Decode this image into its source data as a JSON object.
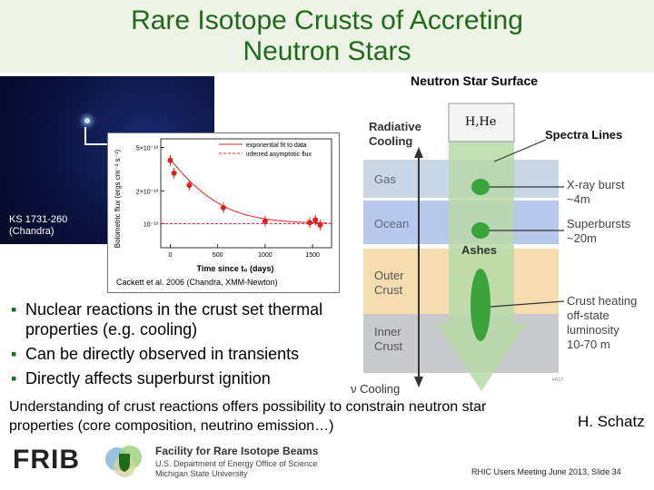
{
  "slide": {
    "title_line1": "Rare Isotope Crusts of Accreting",
    "title_line2": "Neutron Stars"
  },
  "image": {
    "source_label_line1": "KS 1731-260",
    "source_label_line2": "(Chandra)"
  },
  "inset_chart": {
    "legend_fit": "exponential fit to data",
    "legend_flux": "inferred asymptotic flux",
    "citation": "Cackett et al. 2006 (Chandra, XMM-Newton)"
  },
  "chart_data": {
    "type": "scatter",
    "title": "",
    "xlabel": "Time since t₀ (days)",
    "ylabel": "Bolometric flux (ergs cm⁻² s⁻¹)",
    "x_ticks": [
      "0",
      "500",
      "1000",
      "1500"
    ],
    "y_ticks": [
      "5×10⁻¹³",
      "2×10⁻¹³",
      "10⁻¹³"
    ],
    "xlim": [
      -100,
      1700
    ],
    "ylim": [
      6e-14,
      6e-13
    ],
    "y_scale": "log",
    "series": [
      {
        "name": "",
        "x": [
          0,
          40,
          200,
          560,
          1000,
          1470,
          1530,
          1580
        ],
        "y": [
          3.8e-13,
          2.9e-13,
          2.25e-13,
          1.4e-13,
          1.05e-13,
          1.02e-13,
          1.08e-13,
          9.7e-14
        ]
      }
    ],
    "fit_curve": {
      "name": "exponential fit to data",
      "asymptote": 1e-13
    },
    "asymptote_line": {
      "name": "inferred asymptotic flux",
      "value": 1e-13
    }
  },
  "diagram": {
    "title": "Neutron Star Surface",
    "radiative_line1": "Radiative",
    "radiative_line2": "Cooling",
    "hhe": "H,He",
    "spectra": "Spectra Lines",
    "gas": "Gas",
    "xray_line1": "X-ray burst",
    "xray_line2": "~4m",
    "ocean": "Ocean",
    "superbursts_line1": "Superbursts",
    "superbursts_line2": "~20m",
    "ashes": "Ashes",
    "outer_line1": "Outer",
    "outer_line2": "Crust",
    "crust_line1": "Crust heating",
    "crust_line2": "off-state",
    "crust_line3": "luminosity",
    "crust_line4": "10-70 m",
    "inner_line1": "Inner",
    "inner_line2": "Crust",
    "nu_cooling": "ν Cooling",
    "tiny_credit": "FAST"
  },
  "bullets": [
    "Nuclear reactions in the crust set thermal properties (e.g. cooling)",
    "Can be directly observed in transients",
    "Directly affects superburst ignition"
  ],
  "summary": "Understanding of crust reactions offers possibility to constrain neutron star properties (core composition, neutrino emission…)",
  "author": "H. Schatz",
  "footer": {
    "frib": "FRIB",
    "facility": "Facility for Rare Isotope Beams",
    "line2": "U.S. Department of Energy Office of Science",
    "line3": "Michigan State University",
    "meeting": "RHIC Users Meeting June 2013, Slide 34"
  },
  "colors": {
    "title": "#1e6b1a",
    "data_points": "#e02020",
    "gas_layer": "#c9d6e6",
    "ocean_layer": "#b8c8ec",
    "outer_crust_layer": "#f5ddb0",
    "inner_crust_layer": "#c9cacd",
    "arrow_green": "#3ca33c"
  }
}
